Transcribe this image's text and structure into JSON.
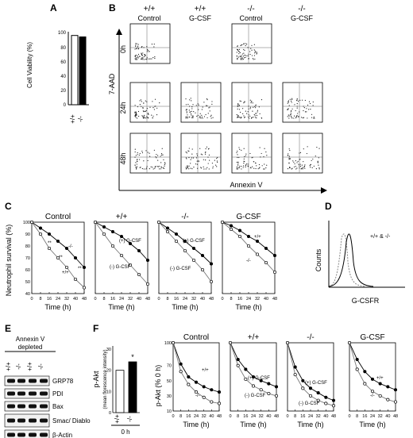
{
  "panels": {
    "A": "A",
    "B": "B",
    "C": "C",
    "D": "D",
    "E": "E",
    "F": "F"
  },
  "panelA": {
    "ylabel": "Cell Viability (%)",
    "ticks": [
      "100",
      "80",
      "60",
      "40",
      "20",
      "0"
    ],
    "groups": [
      "+/+",
      "-/-"
    ]
  },
  "panelB": {
    "columns": [
      {
        "genotype": "+/+",
        "treatment": "Control"
      },
      {
        "genotype": "+/+",
        "treatment": "G-CSF"
      },
      {
        "genotype": "-/-",
        "treatment": "Control"
      },
      {
        "genotype": "-/-",
        "treatment": "G-CSF"
      }
    ],
    "rows": [
      "0h",
      "24h",
      "48h"
    ],
    "ylabel": "7-AAD",
    "xlabel": "Annexin V"
  },
  "panelC": {
    "ylabel": "Neutrophil survival (%)",
    "xlabel": "Time (h)",
    "yticks": [
      "100",
      "90",
      "80",
      "70",
      "60",
      "50",
      "40"
    ],
    "xticks": [
      "0",
      "8",
      "16",
      "24",
      "32",
      "40",
      "48"
    ],
    "subplots": [
      {
        "title": "Control",
        "labels": [
          "-/-",
          "+/+"
        ]
      },
      {
        "title": "+/+",
        "labels": [
          "(+) G-CSF",
          "(-) G-CSF"
        ]
      },
      {
        "title": "-/-",
        "labels": [
          "(+) G-CSF",
          "(-) G-CSF"
        ]
      },
      {
        "title": "G-CSF",
        "labels": [
          "+/+",
          "-/-"
        ]
      }
    ],
    "sig": "**"
  },
  "panelD": {
    "ylabel": "Counts",
    "xlabel": "G-CSFR",
    "legend": "+/+ & -/-"
  },
  "panelE": {
    "header": [
      "Annexin V",
      "depleted"
    ],
    "lanes": [
      "+/+",
      "-/-",
      "+/+",
      "-/-"
    ],
    "bands": [
      "GRP78",
      "PDI",
      "Bax",
      "Smac/ Diablo",
      "β-Actin"
    ]
  },
  "panelF": {
    "bar_ylabel_main": "p-Akt",
    "bar_ylabel_sub": "(mean florescence intensity)",
    "bar_ticks": [
      "30",
      "20",
      "10",
      "0"
    ],
    "bar_groups": [
      "+/+",
      "-/-"
    ],
    "bar_xlabel": "0 h",
    "star": "*",
    "line_ylabel": "p-Akt (% 0 h)",
    "line_yticks": [
      "100",
      "70",
      "50",
      "30",
      "10"
    ],
    "xlabel": "Time (h)",
    "xticks": [
      "0",
      "8",
      "16",
      "24",
      "32",
      "40",
      "48"
    ],
    "subplots": [
      {
        "title": "Control",
        "labels": [
          "+/+",
          "-/-"
        ]
      },
      {
        "title": "+/+",
        "labels": [
          "(+) G-CSF",
          "(-) G-CSF"
        ]
      },
      {
        "title": "-/-",
        "labels": [
          "(+) G-CSF",
          "(-) G-CSF"
        ]
      },
      {
        "title": "G-CSF",
        "labels": [
          "+/+",
          "-/-"
        ]
      }
    ]
  },
  "chart_data": [
    {
      "type": "bar",
      "panel": "A",
      "categories": [
        "+/+",
        "-/-"
      ],
      "values": [
        97,
        95
      ],
      "ylabel": "Cell Viability (%)",
      "ylim": [
        0,
        100
      ]
    },
    {
      "type": "line",
      "panel": "C",
      "title": "Control",
      "x": [
        0,
        8,
        16,
        24,
        32,
        40,
        48
      ],
      "ylim": [
        40,
        100
      ],
      "xlabel": "Time (h)",
      "ylabel": "Neutrophil survival (%)",
      "series": [
        {
          "name": "-/-",
          "values": [
            100,
            95,
            90,
            84,
            78,
            70,
            62
          ]
        },
        {
          "name": "+/+",
          "values": [
            100,
            90,
            78,
            70,
            62,
            52,
            45
          ]
        }
      ]
    },
    {
      "type": "line",
      "panel": "C",
      "title": "+/+",
      "x": [
        0,
        8,
        16,
        24,
        32,
        40,
        48
      ],
      "ylim": [
        40,
        100
      ],
      "xlabel": "Time (h)",
      "series": [
        {
          "name": "(+) G-CSF",
          "values": [
            100,
            96,
            92,
            88,
            82,
            76,
            68
          ]
        },
        {
          "name": "(-) G-CSF",
          "values": [
            100,
            90,
            80,
            72,
            64,
            56,
            48
          ]
        }
      ]
    },
    {
      "type": "line",
      "panel": "C",
      "title": "-/-",
      "x": [
        0,
        8,
        16,
        24,
        32,
        40,
        48
      ],
      "ylim": [
        40,
        100
      ],
      "xlabel": "Time (h)",
      "series": [
        {
          "name": "(+) G-CSF",
          "values": [
            100,
            95,
            90,
            84,
            78,
            72,
            65
          ]
        },
        {
          "name": "(-) G-CSF",
          "values": [
            100,
            92,
            84,
            76,
            68,
            60,
            50
          ]
        }
      ]
    },
    {
      "type": "line",
      "panel": "C",
      "title": "G-CSF",
      "x": [
        0,
        8,
        16,
        24,
        32,
        40,
        48
      ],
      "ylim": [
        40,
        100
      ],
      "xlabel": "Time (h)",
      "series": [
        {
          "name": "+/+",
          "values": [
            100,
            97,
            93,
            88,
            84,
            78,
            72
          ]
        },
        {
          "name": "-/-",
          "values": [
            100,
            94,
            88,
            80,
            73,
            66,
            58
          ]
        }
      ]
    },
    {
      "type": "bar",
      "panel": "F",
      "categories": [
        "+/+",
        "-/-"
      ],
      "values": [
        20,
        24
      ],
      "ylabel": "p-Akt (mean florescence intensity)",
      "ylim": [
        0,
        30
      ],
      "xlabel": "0 h"
    },
    {
      "type": "line",
      "panel": "F",
      "title": "Control",
      "x": [
        0,
        8,
        16,
        24,
        32,
        40,
        48
      ],
      "ylim": [
        10,
        100
      ],
      "xlabel": "Time (h)",
      "ylabel": "p-Akt (% 0 h)",
      "series": [
        {
          "name": "+/+",
          "values": [
            100,
            72,
            55,
            48,
            42,
            38,
            35
          ]
        },
        {
          "name": "-/-",
          "values": [
            100,
            62,
            45,
            35,
            28,
            22,
            20
          ]
        }
      ]
    },
    {
      "type": "line",
      "panel": "F",
      "title": "+/+",
      "x": [
        0,
        8,
        16,
        24,
        32,
        40,
        48
      ],
      "ylim": [
        10,
        100
      ],
      "xlabel": "Time (h)",
      "series": [
        {
          "name": "(+) G-CSF",
          "values": [
            100,
            78,
            65,
            55,
            50,
            46,
            42
          ]
        },
        {
          "name": "(-) G-CSF",
          "values": [
            100,
            70,
            52,
            43,
            38,
            33,
            30
          ]
        }
      ]
    },
    {
      "type": "line",
      "panel": "F",
      "title": "-/-",
      "x": [
        0,
        8,
        16,
        24,
        32,
        40,
        48
      ],
      "ylim": [
        10,
        100
      ],
      "xlabel": "Time (h)",
      "series": [
        {
          "name": "(+) G-CSF",
          "values": [
            100,
            68,
            50,
            40,
            34,
            28,
            24
          ]
        },
        {
          "name": "(-) G-CSF",
          "values": [
            100,
            58,
            40,
            30,
            24,
            20,
            17
          ]
        }
      ]
    },
    {
      "type": "line",
      "panel": "F",
      "title": "G-CSF",
      "x": [
        0,
        8,
        16,
        24,
        32,
        40,
        48
      ],
      "ylim": [
        10,
        100
      ],
      "xlabel": "Time (h)",
      "series": [
        {
          "name": "+/+",
          "values": [
            100,
            78,
            62,
            52,
            46,
            42,
            38
          ]
        },
        {
          "name": "-/-",
          "values": [
            100,
            65,
            46,
            36,
            30,
            25,
            22
          ]
        }
      ]
    }
  ]
}
